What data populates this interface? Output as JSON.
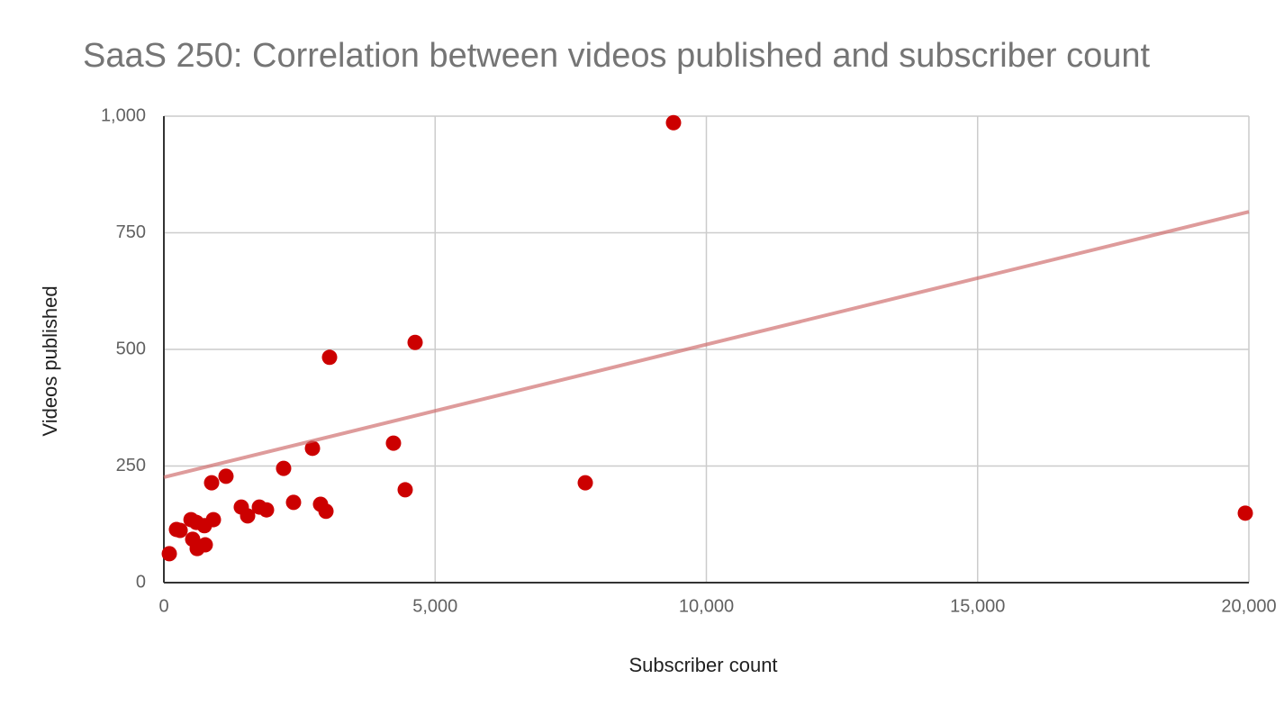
{
  "chart_data": {
    "type": "scatter",
    "title": "SaaS 250: Correlation between videos published and subscriber count",
    "x_label": "Subscriber count",
    "y_label": "Videos published",
    "xlim": [
      0,
      20000
    ],
    "ylim": [
      0,
      1000
    ],
    "xticks": [
      0,
      {
        "value": 5000,
        "label": "5,000"
      },
      {
        "value": 10000,
        "label": "10,000"
      },
      {
        "value": 15000,
        "label": "15,000"
      },
      {
        "value": 20000,
        "label": "20,000"
      }
    ],
    "yticks": [
      0,
      250,
      500,
      750,
      {
        "value": 1000,
        "label": "1,000"
      }
    ],
    "grid": true,
    "series": [
      {
        "color": "#cc0000",
        "x": [
          100,
          232,
          300,
          500,
          531,
          600,
          614,
          747,
          763,
          880,
          913,
          1145,
          1427,
          1544,
          1760,
          1892,
          2207,
          2390,
          2739,
          2888,
          2988,
          3054,
          4232,
          4448,
          4631,
          7768,
          9394,
          19934
        ],
        "values": [
          62,
          114,
          112,
          135,
          93,
          129,
          73,
          122,
          81,
          214,
          135,
          228,
          162,
          143,
          162,
          156,
          245,
          172,
          288,
          168,
          153,
          483,
          299,
          199,
          515,
          214,
          986,
          149
        ]
      }
    ],
    "trendline": {
      "color": "#cc6666",
      "x": [
        0,
        20000
      ],
      "values": [
        226,
        795
      ]
    }
  }
}
